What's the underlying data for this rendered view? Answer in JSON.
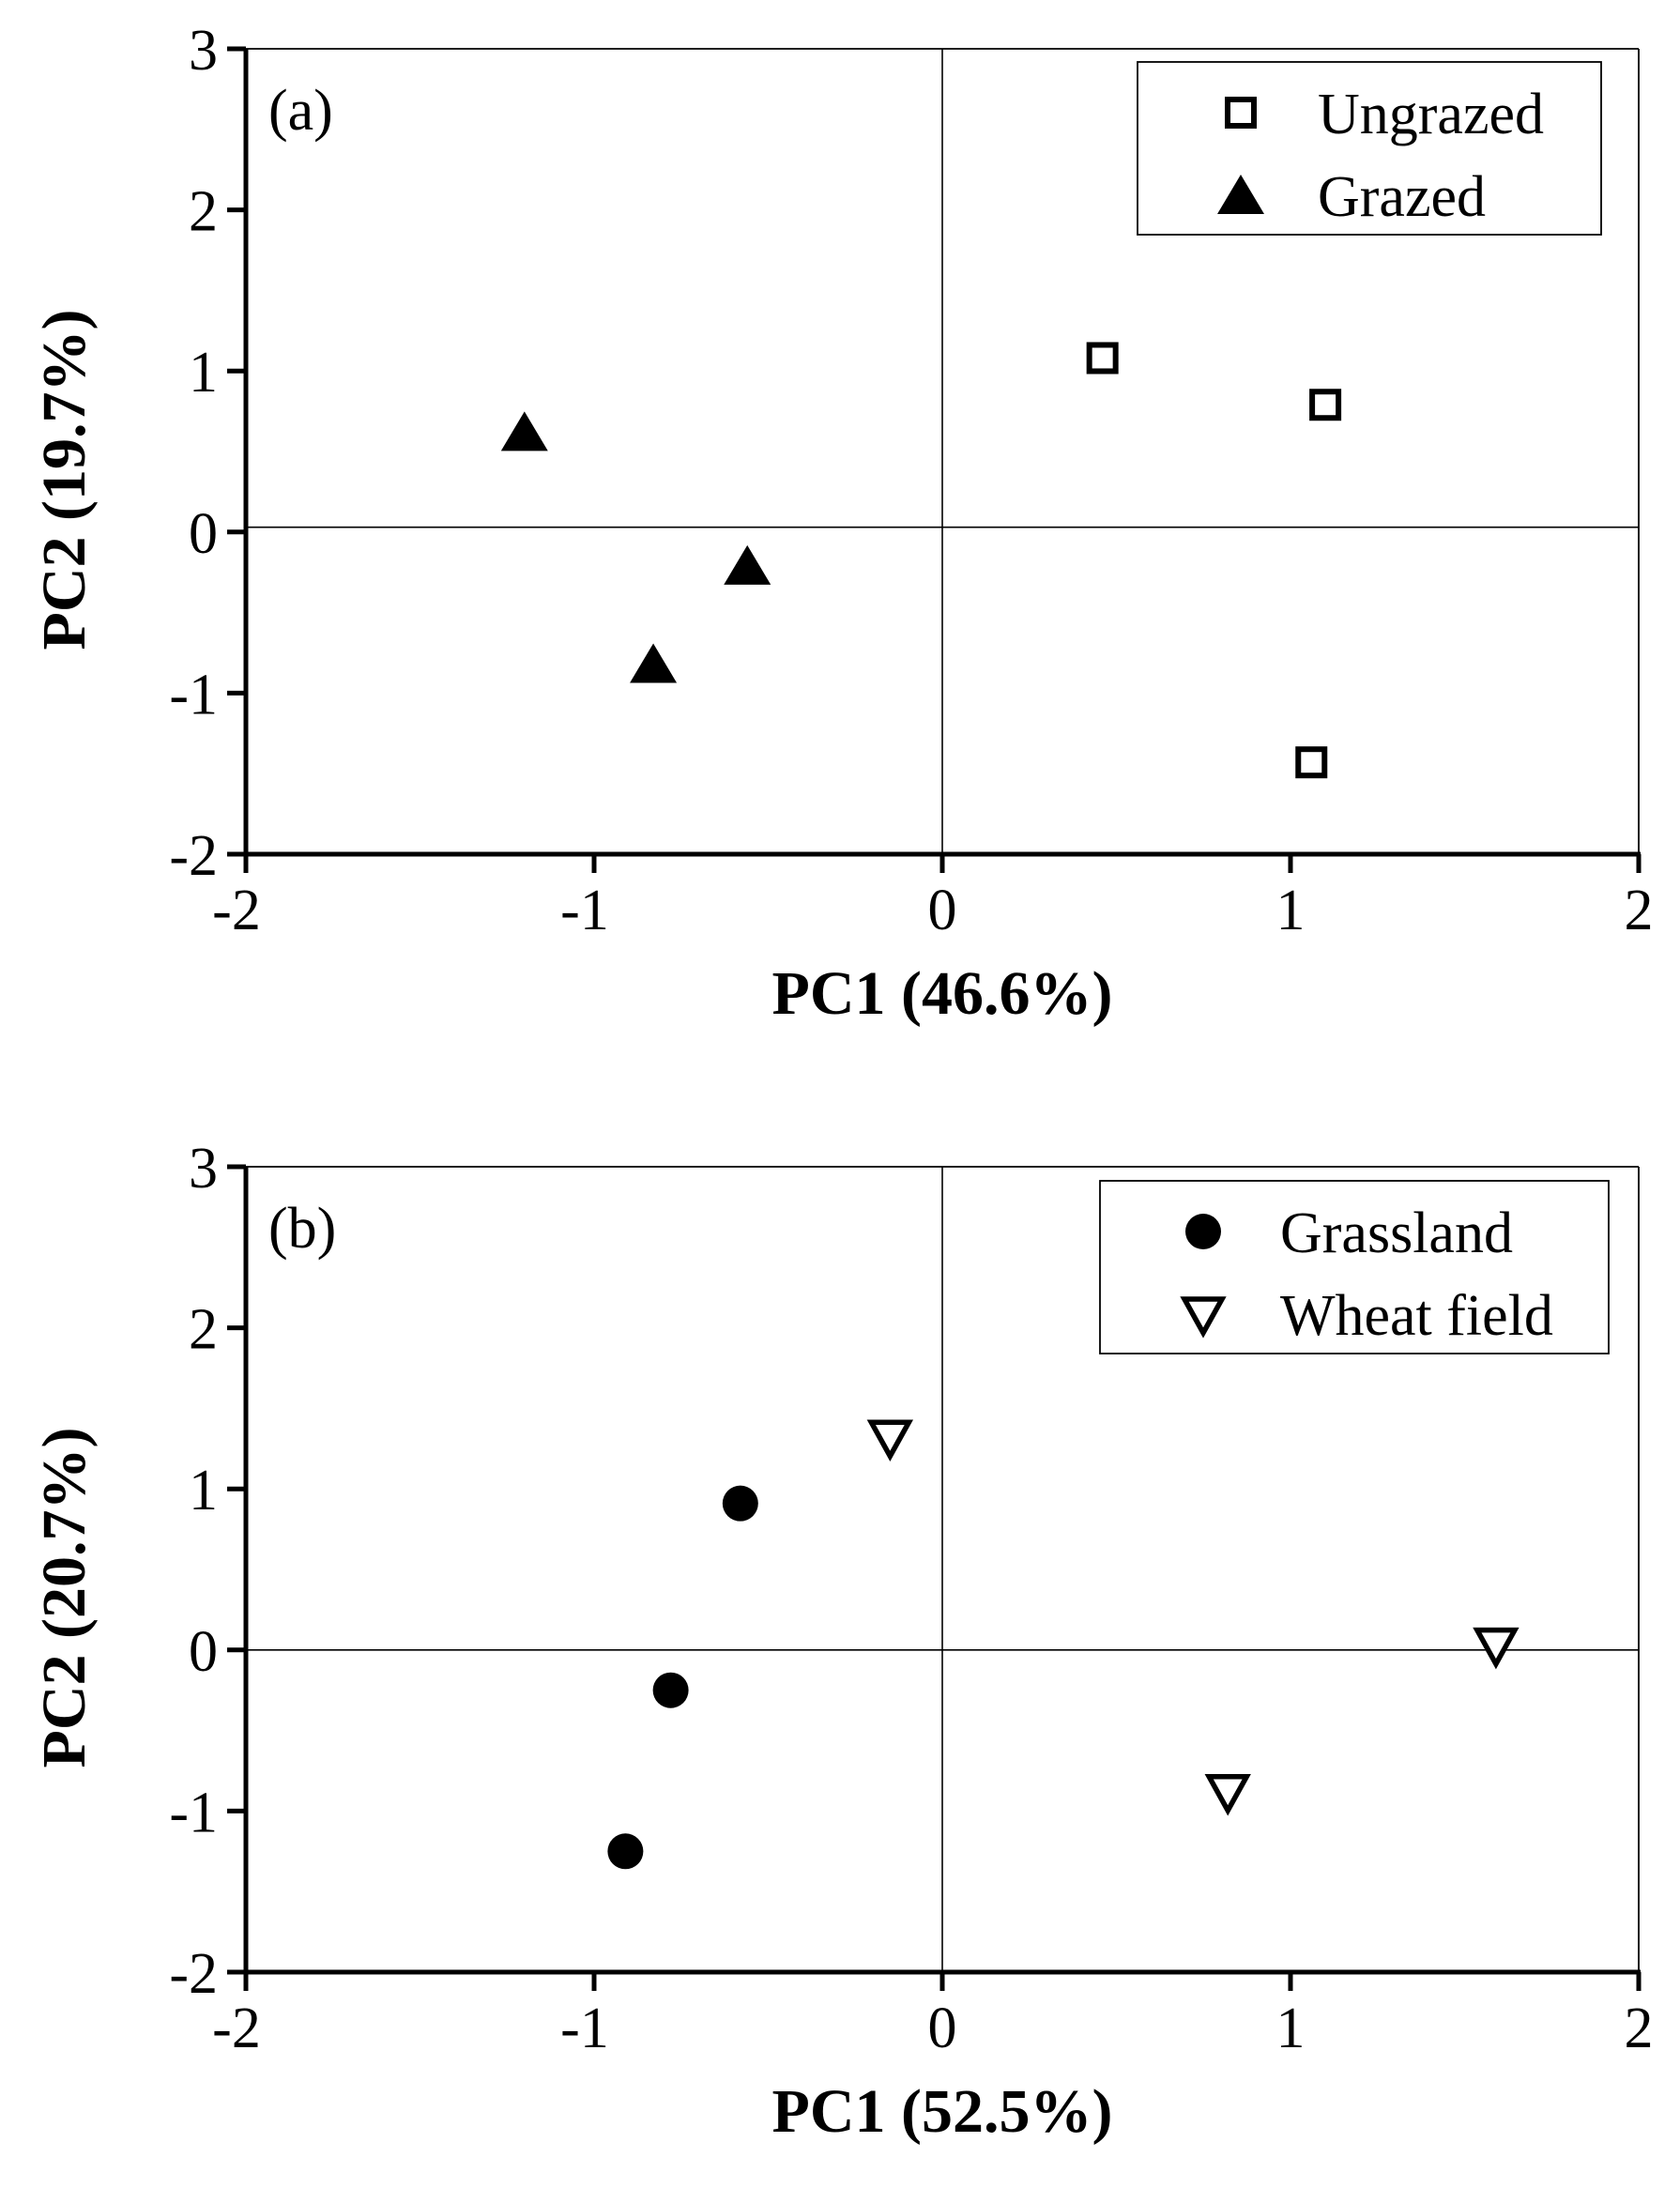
{
  "chart_data": [
    {
      "type": "scatter",
      "panel_label": "(a)",
      "xlabel": "PC1 (46.6%)",
      "ylabel": "PC2 (19.7%)",
      "xlim": [
        -2,
        2
      ],
      "ylim": [
        -2,
        3
      ],
      "xticks": [
        -2,
        -1,
        0,
        1,
        2
      ],
      "yticks": [
        -2,
        -1,
        0,
        1,
        2,
        3
      ],
      "legend_position": "top-right",
      "reference_lines": {
        "x": 0,
        "y": 0.03
      },
      "series": [
        {
          "name": "Ungrazed",
          "marker": "open-square",
          "points": [
            {
              "x": 0.46,
              "y": 1.08
            },
            {
              "x": 1.1,
              "y": 0.79
            },
            {
              "x": 1.06,
              "y": -1.43
            }
          ]
        },
        {
          "name": "Grazed",
          "marker": "filled-triangle-up",
          "points": [
            {
              "x": -1.2,
              "y": 0.62
            },
            {
              "x": -0.56,
              "y": -0.21
            },
            {
              "x": -0.83,
              "y": -0.82
            }
          ]
        }
      ]
    },
    {
      "type": "scatter",
      "panel_label": "(b)",
      "xlabel": "PC1 (52.5%)",
      "ylabel": "PC2 (20.7%)",
      "xlim": [
        -2,
        2
      ],
      "ylim": [
        -2,
        3
      ],
      "xticks": [
        -2,
        -1,
        0,
        1,
        2
      ],
      "yticks": [
        -2,
        -1,
        0,
        1,
        2,
        3
      ],
      "legend_position": "top-right",
      "reference_lines": {
        "x": 0,
        "y": 0
      },
      "series": [
        {
          "name": "Grassland",
          "marker": "filled-circle",
          "points": [
            {
              "x": -0.58,
              "y": 0.91
            },
            {
              "x": -0.78,
              "y": -0.25
            },
            {
              "x": -0.91,
              "y": -1.25
            }
          ]
        },
        {
          "name": "Wheat field",
          "marker": "open-triangle-down",
          "points": [
            {
              "x": -0.15,
              "y": 1.32
            },
            {
              "x": 1.59,
              "y": 0.03
            },
            {
              "x": 0.82,
              "y": -0.88
            }
          ]
        }
      ]
    }
  ]
}
